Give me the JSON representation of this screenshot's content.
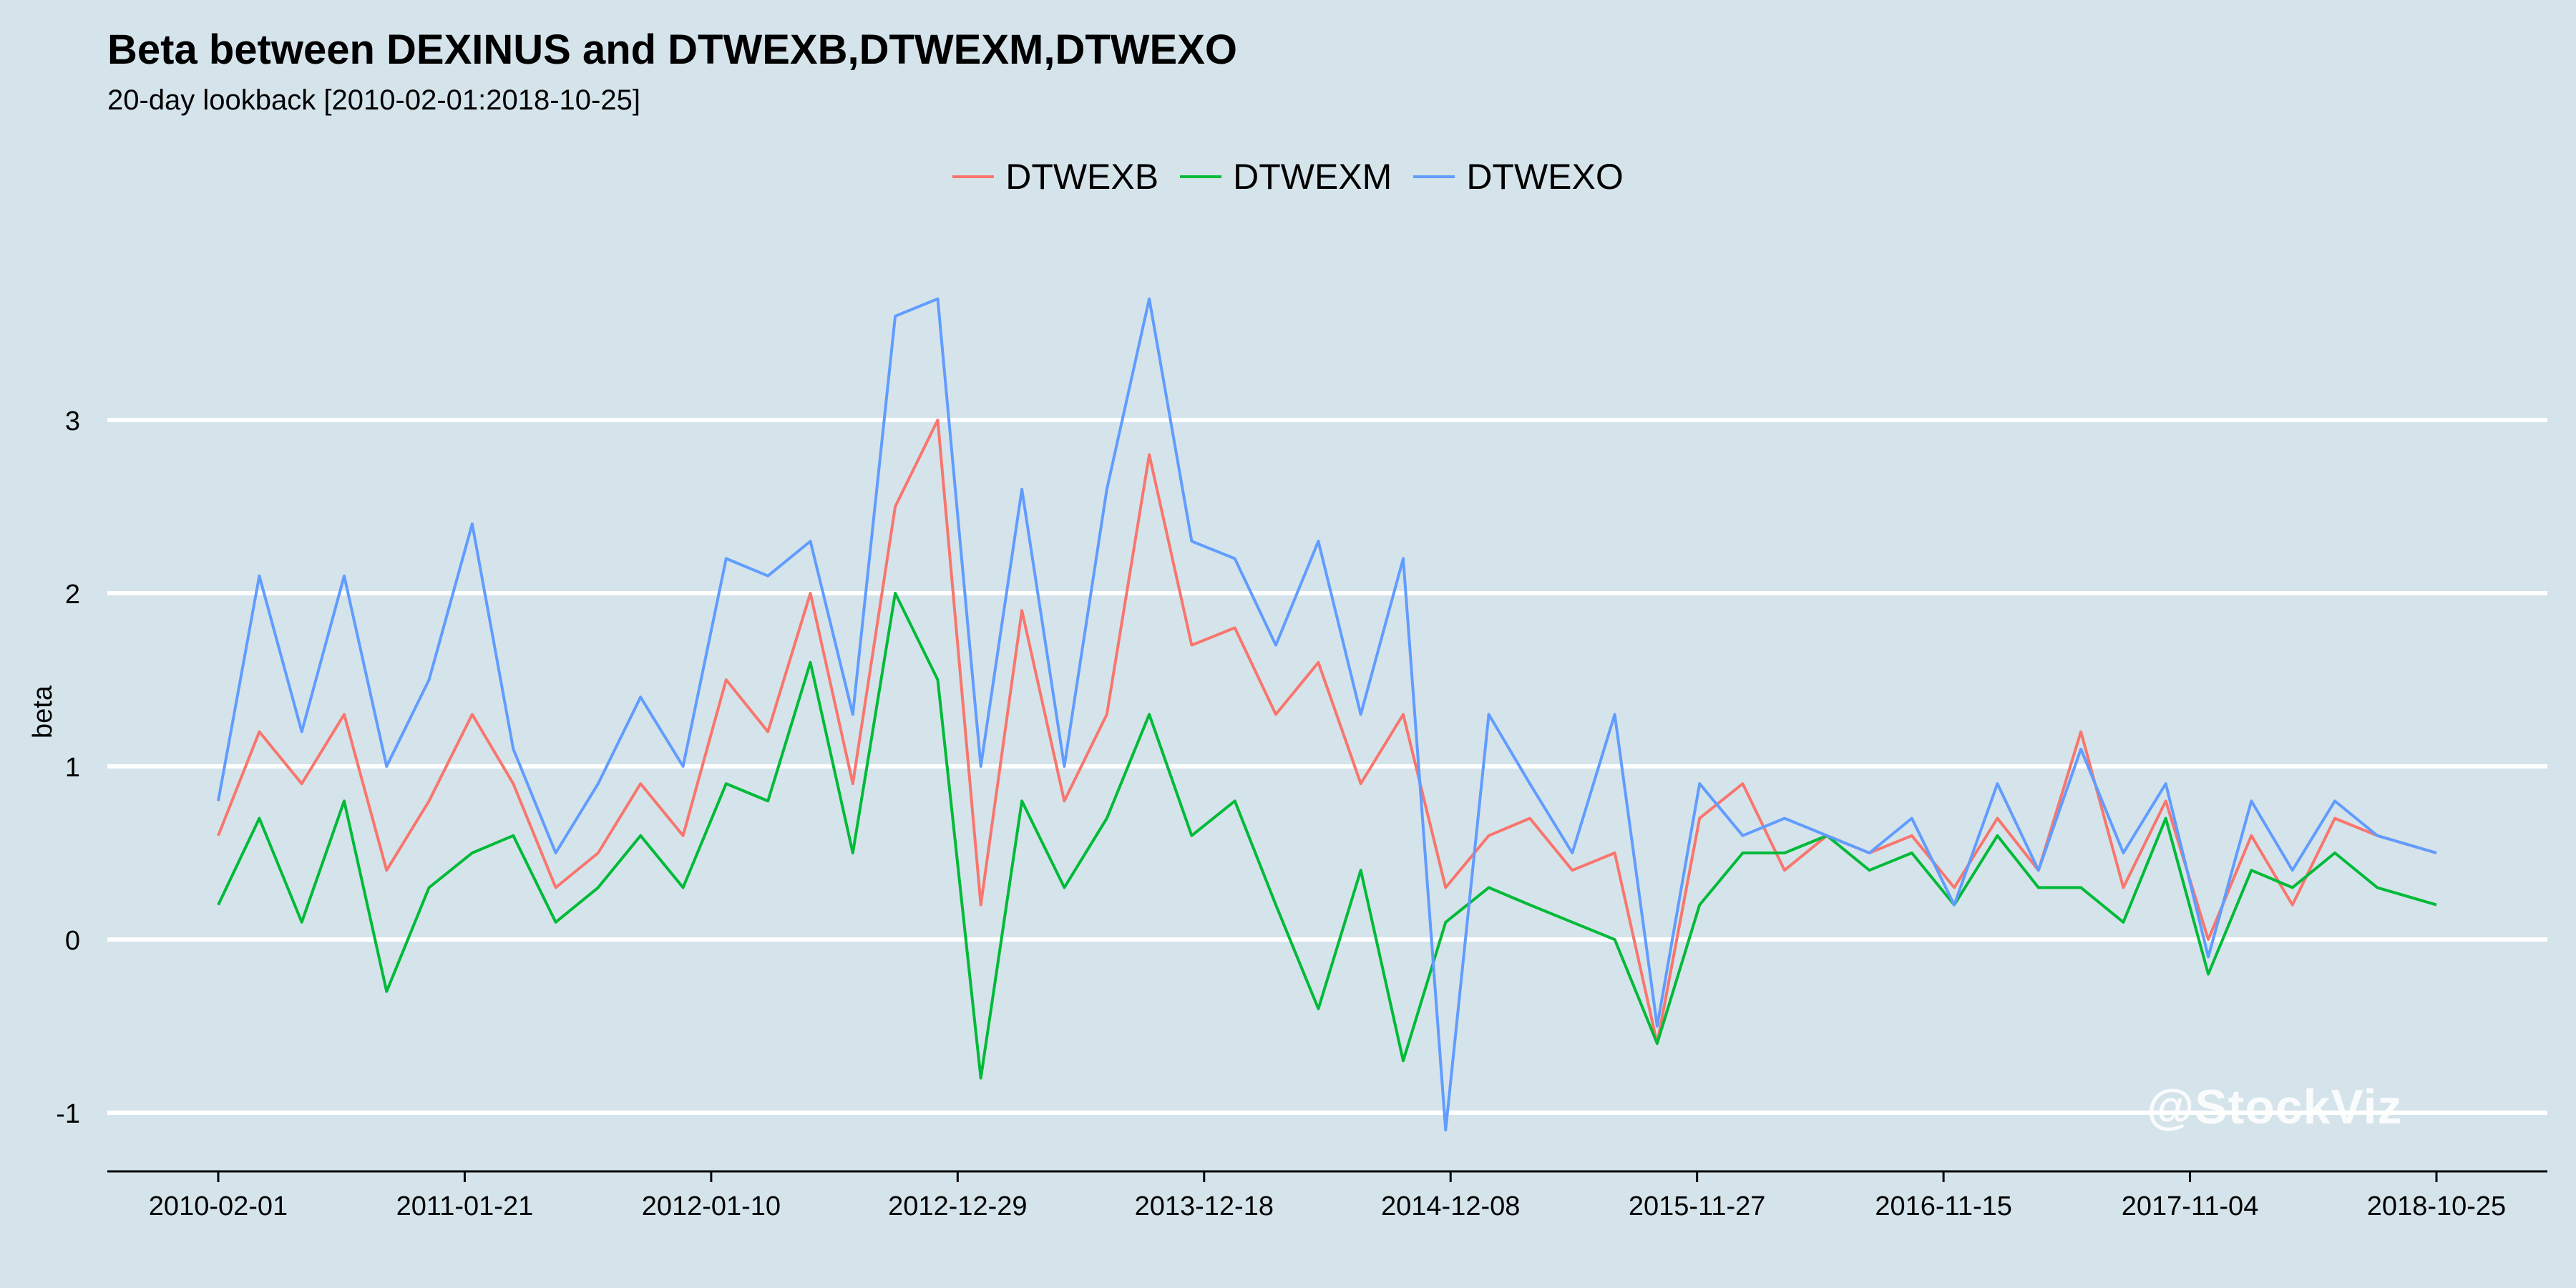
{
  "chart_data": {
    "type": "line",
    "title": "Beta between DEXINUS and DTWEXB,DTWEXM,DTWEXO",
    "subtitle": "20-day lookback [2010-02-01:2018-10-25]",
    "xlabel": "",
    "ylabel": "beta",
    "ylim": [
      -1.3,
      4.0
    ],
    "y_ticks": [
      -1,
      0,
      1,
      2,
      3
    ],
    "x_tick_labels": [
      "2010-02-01",
      "2011-01-21",
      "2012-01-10",
      "2012-12-29",
      "2013-12-18",
      "2014-12-08",
      "2015-11-27",
      "2016-11-15",
      "2017-11-04",
      "2018-10-25"
    ],
    "x_range": [
      "2010-02-01",
      "2018-10-25"
    ],
    "grid": "horizontal major lines",
    "legend_position": "top",
    "colors": {
      "DTWEXB": "#f8766d",
      "DTWEXM": "#00ba38",
      "DTWEXO": "#619cff"
    },
    "series": [
      {
        "name": "DTWEXB",
        "x": [
          "2010-02-01",
          "2010-04-01",
          "2010-06-01",
          "2010-08-01",
          "2010-10-01",
          "2010-12-01",
          "2011-02-01",
          "2011-04-01",
          "2011-06-01",
          "2011-08-01",
          "2011-10-01",
          "2011-12-01",
          "2012-02-01",
          "2012-04-01",
          "2012-06-01",
          "2012-08-01",
          "2012-10-01",
          "2012-12-01",
          "2013-02-01",
          "2013-04-01",
          "2013-06-01",
          "2013-08-01",
          "2013-10-01",
          "2013-12-01",
          "2014-02-01",
          "2014-04-01",
          "2014-06-01",
          "2014-08-01",
          "2014-10-01",
          "2014-12-01",
          "2015-02-01",
          "2015-04-01",
          "2015-06-01",
          "2015-08-01",
          "2015-10-01",
          "2015-12-01",
          "2016-02-01",
          "2016-04-01",
          "2016-06-01",
          "2016-08-01",
          "2016-10-01",
          "2016-12-01",
          "2017-02-01",
          "2017-04-01",
          "2017-06-01",
          "2017-08-01",
          "2017-10-01",
          "2017-12-01",
          "2018-02-01",
          "2018-04-01",
          "2018-06-01",
          "2018-08-01",
          "2018-10-25"
        ],
        "values": [
          0.6,
          1.2,
          0.9,
          1.3,
          0.4,
          0.8,
          1.3,
          0.9,
          0.3,
          0.5,
          0.9,
          0.6,
          1.5,
          1.2,
          2.0,
          0.9,
          2.5,
          3.0,
          0.2,
          1.9,
          0.8,
          1.3,
          2.8,
          1.7,
          1.8,
          1.3,
          1.6,
          0.9,
          1.3,
          0.3,
          0.6,
          0.7,
          0.4,
          0.5,
          -0.6,
          0.7,
          0.9,
          0.4,
          0.6,
          0.5,
          0.6,
          0.3,
          0.7,
          0.4,
          1.2,
          0.3,
          0.8,
          0.0,
          0.6,
          0.2,
          0.7,
          0.6,
          0.5
        ]
      },
      {
        "name": "DTWEXM",
        "x": [
          "2010-02-01",
          "2010-04-01",
          "2010-06-01",
          "2010-08-01",
          "2010-10-01",
          "2010-12-01",
          "2011-02-01",
          "2011-04-01",
          "2011-06-01",
          "2011-08-01",
          "2011-10-01",
          "2011-12-01",
          "2012-02-01",
          "2012-04-01",
          "2012-06-01",
          "2012-08-01",
          "2012-10-01",
          "2012-12-01",
          "2013-02-01",
          "2013-04-01",
          "2013-06-01",
          "2013-08-01",
          "2013-10-01",
          "2013-12-01",
          "2014-02-01",
          "2014-04-01",
          "2014-06-01",
          "2014-08-01",
          "2014-10-01",
          "2014-12-01",
          "2015-02-01",
          "2015-04-01",
          "2015-06-01",
          "2015-08-01",
          "2015-10-01",
          "2015-12-01",
          "2016-02-01",
          "2016-04-01",
          "2016-06-01",
          "2016-08-01",
          "2016-10-01",
          "2016-12-01",
          "2017-02-01",
          "2017-04-01",
          "2017-06-01",
          "2017-08-01",
          "2017-10-01",
          "2017-12-01",
          "2018-02-01",
          "2018-04-01",
          "2018-06-01",
          "2018-08-01",
          "2018-10-25"
        ],
        "values": [
          0.2,
          0.7,
          0.1,
          0.8,
          -0.3,
          0.3,
          0.5,
          0.6,
          0.1,
          0.3,
          0.6,
          0.3,
          0.9,
          0.8,
          1.6,
          0.5,
          2.0,
          1.5,
          -0.8,
          0.8,
          0.3,
          0.7,
          1.3,
          0.6,
          0.8,
          0.2,
          -0.4,
          0.4,
          -0.7,
          0.1,
          0.3,
          0.2,
          0.1,
          0.0,
          -0.6,
          0.2,
          0.5,
          0.5,
          0.6,
          0.4,
          0.5,
          0.2,
          0.6,
          0.3,
          0.3,
          0.1,
          0.7,
          -0.2,
          0.4,
          0.3,
          0.5,
          0.3,
          0.2
        ]
      },
      {
        "name": "DTWEXO",
        "x": [
          "2010-02-01",
          "2010-04-01",
          "2010-06-01",
          "2010-08-01",
          "2010-10-01",
          "2010-12-01",
          "2011-02-01",
          "2011-04-01",
          "2011-06-01",
          "2011-08-01",
          "2011-10-01",
          "2011-12-01",
          "2012-02-01",
          "2012-04-01",
          "2012-06-01",
          "2012-08-01",
          "2012-10-01",
          "2012-12-01",
          "2013-02-01",
          "2013-04-01",
          "2013-06-01",
          "2013-08-01",
          "2013-10-01",
          "2013-12-01",
          "2014-02-01",
          "2014-04-01",
          "2014-06-01",
          "2014-08-01",
          "2014-10-01",
          "2014-12-01",
          "2015-02-01",
          "2015-04-01",
          "2015-06-01",
          "2015-08-01",
          "2015-10-01",
          "2015-12-01",
          "2016-02-01",
          "2016-04-01",
          "2016-06-01",
          "2016-08-01",
          "2016-10-01",
          "2016-12-01",
          "2017-02-01",
          "2017-04-01",
          "2017-06-01",
          "2017-08-01",
          "2017-10-01",
          "2017-12-01",
          "2018-02-01",
          "2018-04-01",
          "2018-06-01",
          "2018-08-01",
          "2018-10-25"
        ],
        "values": [
          0.8,
          2.1,
          1.2,
          2.1,
          1.0,
          1.5,
          2.4,
          1.1,
          0.5,
          0.9,
          1.4,
          1.0,
          2.2,
          2.1,
          2.3,
          1.3,
          3.6,
          3.7,
          1.0,
          2.6,
          1.0,
          2.6,
          3.7,
          2.3,
          2.2,
          1.7,
          2.3,
          1.3,
          2.2,
          -1.1,
          1.3,
          0.9,
          0.5,
          1.3,
          -0.5,
          0.9,
          0.6,
          0.7,
          0.6,
          0.5,
          0.7,
          0.2,
          0.9,
          0.4,
          1.1,
          0.5,
          0.9,
          -0.1,
          0.8,
          0.4,
          0.8,
          0.6,
          0.5
        ]
      }
    ]
  },
  "watermark": "@StockViz"
}
